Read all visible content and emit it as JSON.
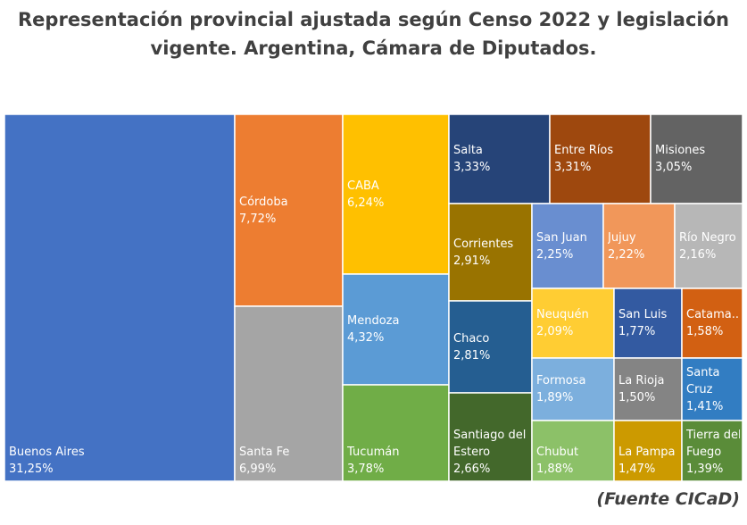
{
  "title_lines": [
    "Representación provincial ajustada según Censo 2022 y legislación",
    "vigente. Argentina, Cámara de Diputados."
  ],
  "source": "(Fuente CICaD)",
  "chart_data": {
    "type": "treemap",
    "title": "Representación provincial ajustada según Censo 2022 y legislación vigente. Argentina, Cámara de Diputados.",
    "unit": "%",
    "items": [
      {
        "name": "Buenos Aires",
        "value": 31.25,
        "label": "31,25%",
        "color": "#4472C4"
      },
      {
        "name": "Córdoba",
        "value": 7.72,
        "label": "7,72%",
        "color": "#ED7D31"
      },
      {
        "name": "Santa Fe",
        "value": 6.99,
        "label": "6,99%",
        "color": "#A5A5A5"
      },
      {
        "name": "CABA",
        "value": 6.24,
        "label": "6,24%",
        "color": "#FFC000"
      },
      {
        "name": "Mendoza",
        "value": 4.32,
        "label": "4,32%",
        "color": "#5B9BD5"
      },
      {
        "name": "Tucumán",
        "value": 3.78,
        "label": "3,78%",
        "color": "#70AD47"
      },
      {
        "name": "Salta",
        "value": 3.33,
        "label": "3,33%",
        "color": "#264478"
      },
      {
        "name": "Entre Ríos",
        "value": 3.31,
        "label": "3,31%",
        "color": "#9E480E"
      },
      {
        "name": "Misiones",
        "value": 3.05,
        "label": "3,05%",
        "color": "#636363"
      },
      {
        "name": "Corrientes",
        "value": 2.91,
        "label": "2,91%",
        "color": "#997300"
      },
      {
        "name": "Chaco",
        "value": 2.81,
        "label": "2,81%",
        "color": "#255E91"
      },
      {
        "name": "Santiago del Estero",
        "value": 2.66,
        "label": "2,66%",
        "color": "#43682B"
      },
      {
        "name": "San Juan",
        "value": 2.25,
        "label": "2,25%",
        "color": "#698ED0"
      },
      {
        "name": "Jujuy",
        "value": 2.22,
        "label": "2,22%",
        "color": "#F1975A"
      },
      {
        "name": "Río Negro",
        "value": 2.16,
        "label": "2,16%",
        "color": "#B7B7B7"
      },
      {
        "name": "Neuquén",
        "value": 2.09,
        "label": "2,09%",
        "color": "#FFCD33"
      },
      {
        "name": "San Luis",
        "value": 1.77,
        "label": "1,77%",
        "color": "#335AA1"
      },
      {
        "name": "Catamarca",
        "value": 1.58,
        "label": "1,58%",
        "color": "#D26012",
        "display_name": "Catama..."
      },
      {
        "name": "Formosa",
        "value": 1.89,
        "label": "1,89%",
        "color": "#7CAFDD"
      },
      {
        "name": "Chubut",
        "value": 1.88,
        "label": "1,88%",
        "color": "#8CC168"
      },
      {
        "name": "La Rioja",
        "value": 1.5,
        "label": "1,50%",
        "color": "#848484"
      },
      {
        "name": "Santa Cruz",
        "value": 1.41,
        "label": "1,41%",
        "color": "#327DC2"
      },
      {
        "name": "La Pampa",
        "value": 1.47,
        "label": "1,47%",
        "color": "#CC9A00"
      },
      {
        "name": "Tierra del Fuego",
        "value": 1.39,
        "label": "1,39%",
        "color": "#5A8C39"
      }
    ]
  }
}
